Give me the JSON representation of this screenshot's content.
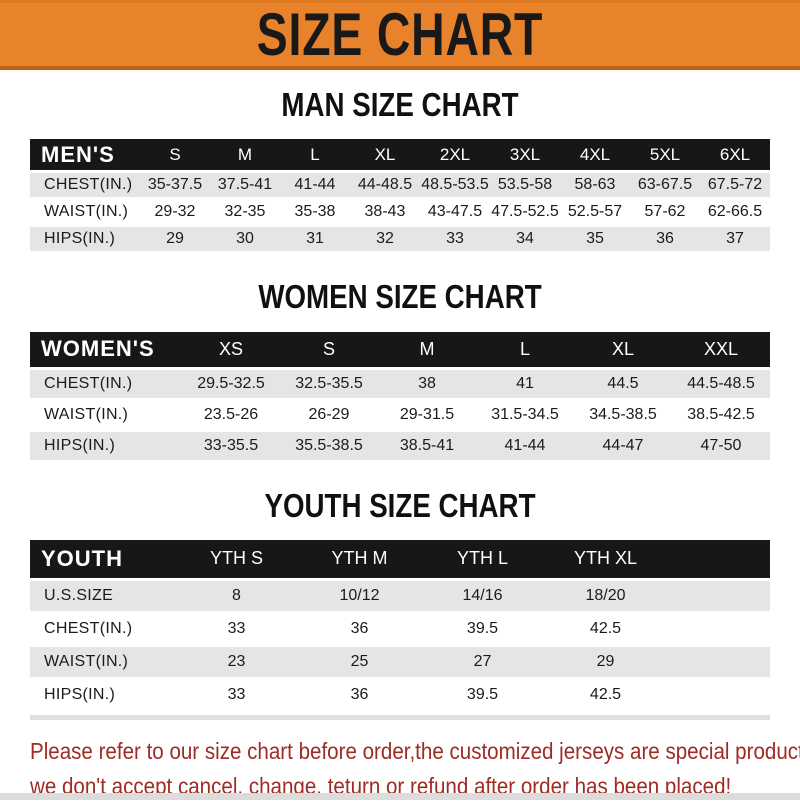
{
  "banner": {
    "title": "SIZE CHART"
  },
  "sections": [
    {
      "heading": "MAN SIZE CHART",
      "table": {
        "label": "MEN'S",
        "columns": [
          "S",
          "M",
          "L",
          "XL",
          "2XL",
          "3XL",
          "4XL",
          "5XL",
          "6XL"
        ],
        "rows": [
          {
            "label": "CHEST(IN.)",
            "values": [
              "35-37.5",
              "37.5-41",
              "41-44",
              "44-48.5",
              "48.5-53.5",
              "53.5-58",
              "58-63",
              "63-67.5",
              "67.5-72"
            ]
          },
          {
            "label": "WAIST(IN.)",
            "values": [
              "29-32",
              "32-35",
              "35-38",
              "38-43",
              "43-47.5",
              "47.5-52.5",
              "52.5-57",
              "57-62",
              "62-66.5"
            ]
          },
          {
            "label": "HIPS(IN.)",
            "values": [
              "29",
              "30",
              "31",
              "32",
              "33",
              "34",
              "35",
              "36",
              "37"
            ]
          }
        ]
      }
    },
    {
      "heading": "WOMEN SIZE CHART",
      "table": {
        "label": "WOMEN'S",
        "columns": [
          "XS",
          "S",
          "M",
          "L",
          "XL",
          "XXL"
        ],
        "rows": [
          {
            "label": "CHEST(IN.)",
            "values": [
              "29.5-32.5",
              "32.5-35.5",
              "38",
              "41",
              "44.5",
              "44.5-48.5"
            ]
          },
          {
            "label": "WAIST(IN.)",
            "values": [
              "23.5-26",
              "26-29",
              "29-31.5",
              "31.5-34.5",
              "34.5-38.5",
              "38.5-42.5"
            ]
          },
          {
            "label": "HIPS(IN.)",
            "values": [
              "33-35.5",
              "35.5-38.5",
              "38.5-41",
              "41-44",
              "44-47",
              "47-50"
            ]
          }
        ]
      }
    },
    {
      "heading": "YOUTH SIZE CHART",
      "table": {
        "label": "YOUTH",
        "columns": [
          "YTH S",
          "YTH M",
          "YTH L",
          "YTH XL",
          ""
        ],
        "rows": [
          {
            "label": "U.S.SIZE",
            "values": [
              "8",
              "10/12",
              "14/16",
              "18/20",
              ""
            ]
          },
          {
            "label": "CHEST(IN.)",
            "values": [
              "33",
              "36",
              "39.5",
              "42.5",
              ""
            ]
          },
          {
            "label": "WAIST(IN.)",
            "values": [
              "23",
              "25",
              "27",
              "29",
              ""
            ]
          },
          {
            "label": "HIPS(IN.)",
            "values": [
              "33",
              "36",
              "39.5",
              "42.5",
              ""
            ]
          }
        ]
      }
    }
  ],
  "footer": {
    "line1": "Please refer to our size chart before order,the customized jerseys are special products,",
    "line2": "we don't accept cancel, change, teturn or refund after order has been placed!"
  },
  "colors": {
    "banner_orange": "#E8822B",
    "header_bar_black": "#171717",
    "row_stripe_gray": "#E5E5E5",
    "notice_red": "#9E2B24"
  }
}
